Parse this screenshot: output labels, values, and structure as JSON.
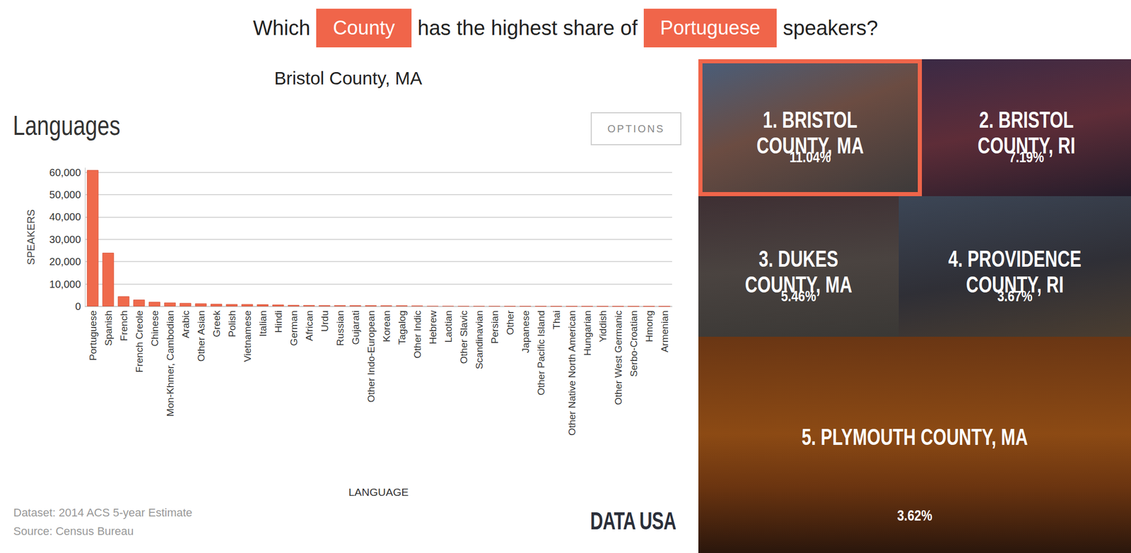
{
  "question": [
    {
      "text": "Which",
      "highlight": false
    },
    {
      "text": "County",
      "highlight": true
    },
    {
      "text": "has the highest share of",
      "highlight": false
    },
    {
      "text": "Portuguese",
      "highlight": true
    },
    {
      "text": "speakers?",
      "highlight": false
    }
  ],
  "place": "Bristol County, MA",
  "button": "OPTIONS",
  "chart_data": {
    "type": "bar",
    "title": "Languages",
    "x_label": "LANGUAGE",
    "y_label": "SPEAKERS",
    "color": "#ef6a4c",
    "categories": [
      "Portuguese",
      "Spanish",
      "French",
      "French Creole",
      "Chinese",
      "Mon-Khmer, Cambodian",
      "Arabic",
      "Other Asian",
      "Greek",
      "Polish",
      "Vietnamese",
      "Italian",
      "Hindi",
      "German",
      "African",
      "Urdu",
      "Russian",
      "Gujarati",
      "Other Indo-European",
      "Korean",
      "Tagalog",
      "Other Indic",
      "Hebrew",
      "Laotian",
      "Other Slavic",
      "Scandinavian",
      "Persian",
      "Other",
      "Japanese",
      "Other Pacific Island",
      "Thai",
      "Other Native North American",
      "Hungarian",
      "Yiddish",
      "Other West Germanic",
      "Serbo-Croatian",
      "Hmong",
      "Armenian"
    ],
    "values": [
      61000,
      24000,
      4500,
      3000,
      2000,
      1700,
      1500,
      1300,
      1100,
      1000,
      1000,
      900,
      800,
      600,
      550,
      500,
      500,
      450,
      450,
      400,
      400,
      350,
      250,
      250,
      200,
      200,
      200,
      150,
      150,
      120,
      100,
      80,
      70,
      60,
      50,
      40,
      30,
      20
    ],
    "ylim": [
      0,
      62000
    ],
    "yticks": [
      0,
      {
        "value": 10000,
        "label": "10,000"
      },
      {
        "value": 20000,
        "label": "20,000"
      },
      {
        "value": 30000,
        "label": "30,000"
      },
      {
        "value": 40000,
        "label": "40,000"
      },
      {
        "value": 50000,
        "label": "50,000"
      },
      {
        "value": 60000,
        "label": "60,000"
      }
    ],
    "grid": true
  },
  "footer": {
    "dataset": "Dataset: 2014 ACS 5-year Estimate",
    "source": "Source: Census Bureau",
    "logo": "DATA USA"
  },
  "ranking": [
    {
      "label": "1. BRISTOL COUNTY, MA",
      "share": "11.04%",
      "selected": true
    },
    {
      "label": "2. BRISTOL COUNTY, RI",
      "share": "7.19%",
      "selected": false
    },
    {
      "label": "3. DUKES COUNTY, MA",
      "share": "5.46%",
      "selected": false
    },
    {
      "label": "4. PROVIDENCE COUNTY, RI",
      "share": "3.67%",
      "selected": false
    },
    {
      "label": "5. PLYMOUTH COUNTY, MA",
      "share": "3.62%",
      "selected": false
    }
  ]
}
